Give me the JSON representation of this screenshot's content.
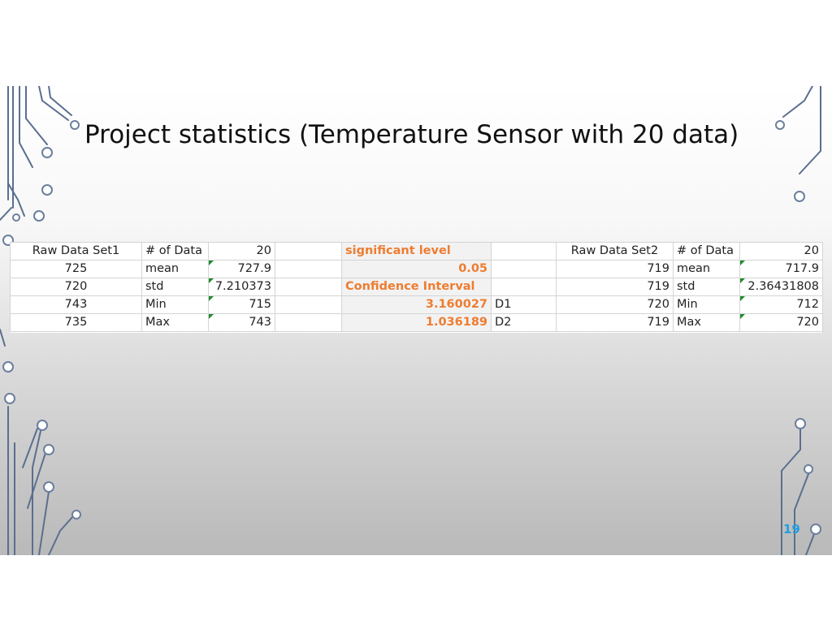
{
  "slide": {
    "title": "Project statistics (Temperature Sensor with 20 data)",
    "page_number": "19"
  },
  "spreadsheet": {
    "rows": [
      [
        "Raw Data Set1",
        "# of Data",
        "20",
        "",
        "significant level",
        "",
        "Raw Data Set2",
        "# of Data",
        "20"
      ],
      [
        "725",
        "mean",
        "727.9",
        "",
        "0.05",
        "",
        "719",
        "mean",
        "717.9"
      ],
      [
        "720",
        "std",
        "7.210373",
        "",
        "Confidence Interval",
        "",
        "719",
        "std",
        "2.36431808"
      ],
      [
        "743",
        "Min",
        "715",
        "",
        "3.160027",
        "D1",
        "720",
        "Min",
        "712"
      ],
      [
        "735",
        "Max",
        "743",
        "",
        "1.036189",
        "D2",
        "719",
        "Max",
        "720"
      ]
    ]
  },
  "colors": {
    "accent_orange": "#ed7d31",
    "page_number_blue": "#1fa0e0",
    "error_triangle_green": "#1e8b2d",
    "circuit_line": "#5a6f8f"
  },
  "icons": [
    "circuit-decoration-icon",
    "error-indicator-triangle-icon"
  ]
}
